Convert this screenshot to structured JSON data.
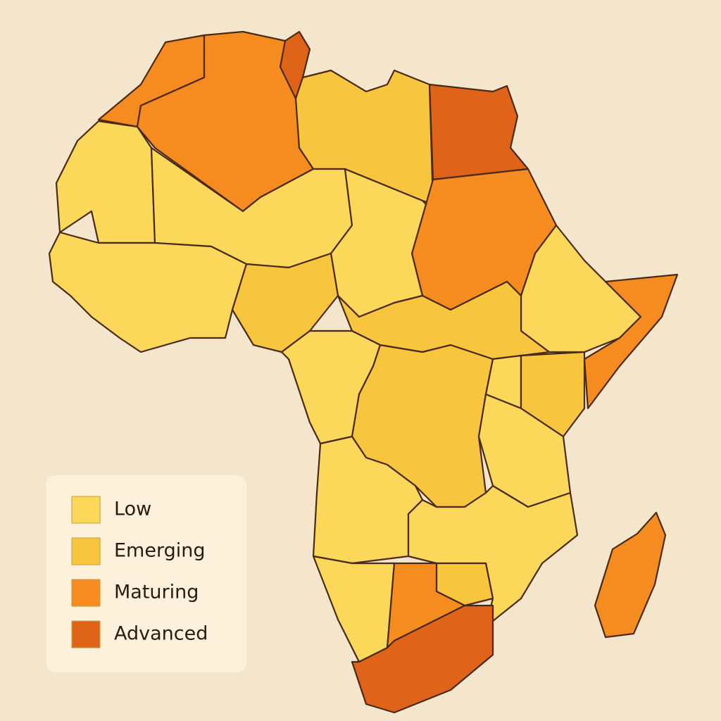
{
  "legend": {
    "items": [
      {
        "label": "Low",
        "color": "#fbd75a"
      },
      {
        "label": "Emerging",
        "color": "#f8c63e"
      },
      {
        "label": "Maturing",
        "color": "#f68b20"
      },
      {
        "label": "Advanced",
        "color": "#e0631a"
      }
    ]
  }
}
